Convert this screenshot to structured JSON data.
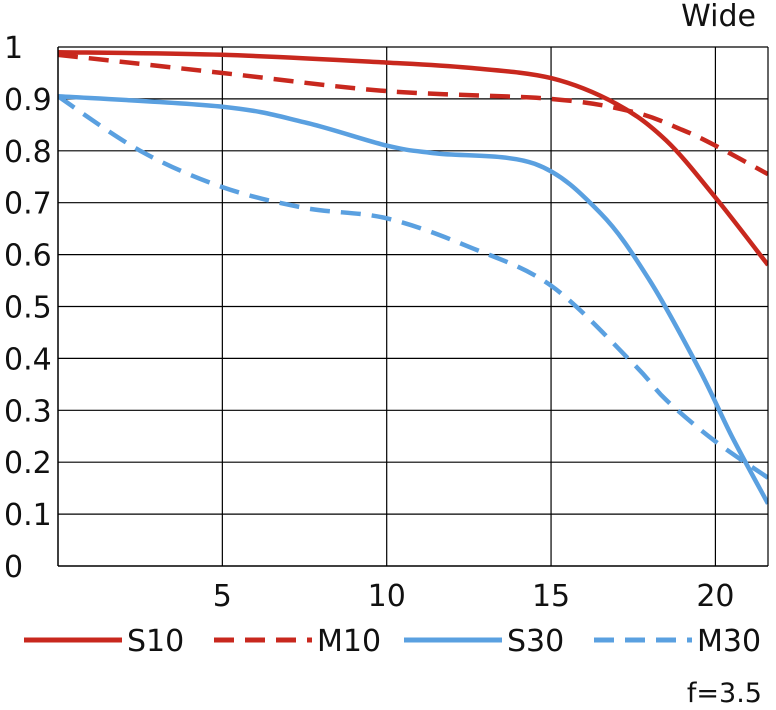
{
  "chart_data": {
    "type": "line",
    "title": "Wide",
    "annotation": "f=3.5",
    "xlabel": "",
    "ylabel": "",
    "xlim": [
      0,
      21.6
    ],
    "ylim": [
      0,
      1
    ],
    "x_ticks": [
      "5",
      "10",
      "15",
      "20"
    ],
    "y_ticks": [
      "0",
      "0.1",
      "0.2",
      "0.3",
      "0.4",
      "0.5",
      "0.6",
      "0.7",
      "0.8",
      "0.9",
      "1"
    ],
    "grid": true,
    "legend_position": "bottom",
    "series": [
      {
        "name": "S10",
        "color": "#c8281e",
        "dash": "solid",
        "x": [
          0,
          5,
          10,
          12.5,
          15,
          17,
          18.5,
          20,
          21.6
        ],
        "y": [
          0.99,
          0.985,
          0.97,
          0.96,
          0.94,
          0.89,
          0.82,
          0.71,
          0.58
        ]
      },
      {
        "name": "M10",
        "color": "#c8281e",
        "dash": "dashed",
        "x": [
          0,
          5,
          10,
          15,
          17.5,
          19,
          20,
          21.6
        ],
        "y": [
          0.985,
          0.95,
          0.915,
          0.9,
          0.875,
          0.84,
          0.81,
          0.755
        ]
      },
      {
        "name": "S30",
        "color": "#5aa0e0",
        "dash": "solid",
        "x": [
          0,
          5,
          7.5,
          10,
          11.5,
          14.5,
          16.5,
          18,
          19.5,
          20.5,
          21.6
        ],
        "y": [
          0.905,
          0.885,
          0.855,
          0.81,
          0.795,
          0.775,
          0.68,
          0.55,
          0.38,
          0.25,
          0.12
        ]
      },
      {
        "name": "M30",
        "color": "#5aa0e0",
        "dash": "dashed",
        "x": [
          0,
          2.5,
          5,
          7.5,
          10,
          12.5,
          15,
          17.5,
          18.5,
          20,
          21.6
        ],
        "y": [
          0.905,
          0.8,
          0.73,
          0.69,
          0.67,
          0.615,
          0.54,
          0.39,
          0.32,
          0.24,
          0.17
        ]
      }
    ]
  }
}
